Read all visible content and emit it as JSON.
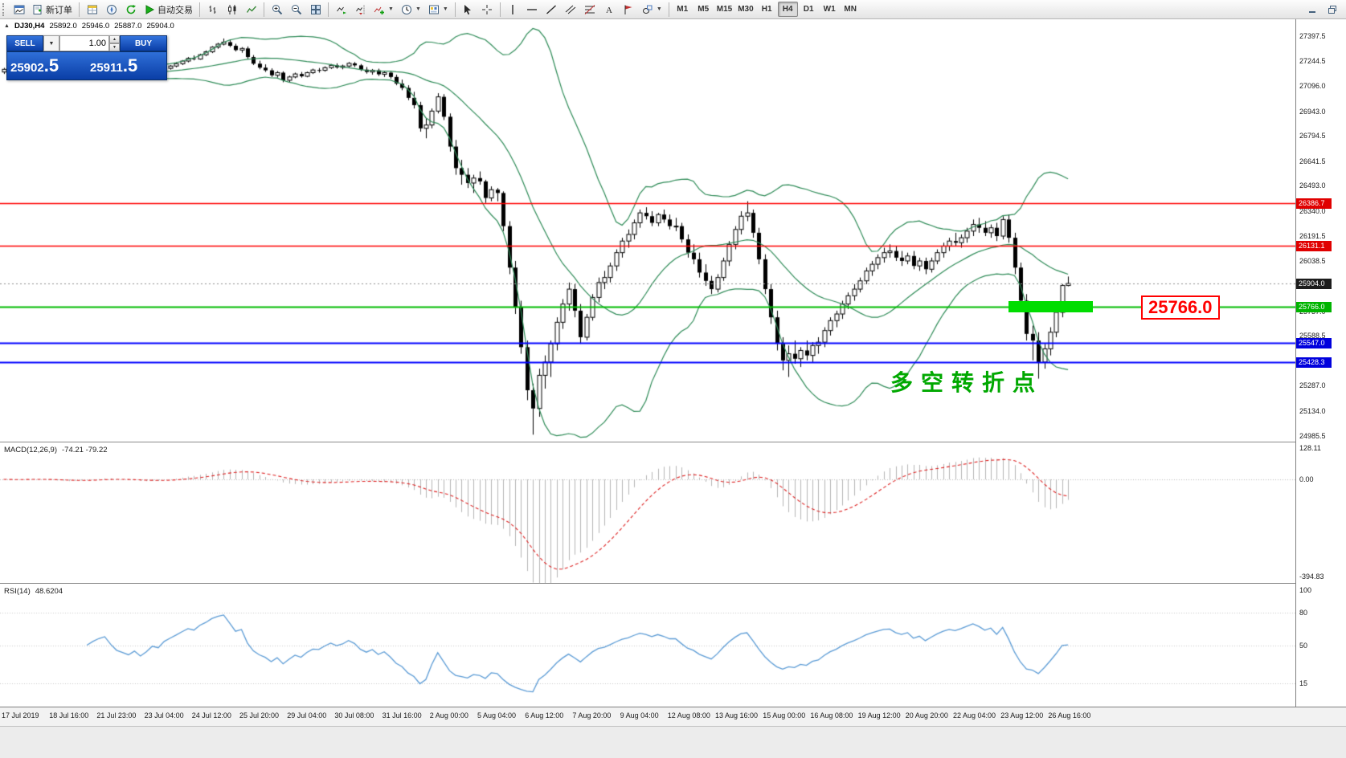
{
  "toolbar": {
    "new_order_label": "新订单",
    "auto_trading_label": "自动交易",
    "timeframes": [
      "M1",
      "M5",
      "M15",
      "M30",
      "H1",
      "H4",
      "D1",
      "W1",
      "MN"
    ],
    "active_timeframe": "H4"
  },
  "chart": {
    "symbol_period": "DJ30,H4",
    "ohlc": {
      "open": "25892.0",
      "high": "25946.0",
      "low": "25887.0",
      "close": "25904.0"
    }
  },
  "trade_panel": {
    "sell_label": "SELL",
    "buy_label": "BUY",
    "volume": "1.00",
    "sell_price_main": "25902",
    "sell_price_frac": ".5",
    "buy_price_main": "25911",
    "buy_price_frac": ".5"
  },
  "price_axis": {
    "labels": [
      "27397.5",
      "27244.5",
      "27096.0",
      "26943.0",
      "26794.5",
      "26641.5",
      "26493.0",
      "26340.0",
      "26191.5",
      "26038.5",
      "25890.0",
      "25737.0",
      "25588.5",
      "25435.5",
      "25287.0",
      "25134.0",
      "24985.5"
    ],
    "badges": [
      {
        "text": "26386.7",
        "bg": "#e00000"
      },
      {
        "text": "26131.1",
        "bg": "#e00000"
      },
      {
        "text": "25904.0",
        "bg": "#1c1c1c"
      },
      {
        "text": "25766.0",
        "bg": "#00b400"
      },
      {
        "text": "25547.0",
        "bg": "#0000dd"
      },
      {
        "text": "25428.3",
        "bg": "#0000dd"
      }
    ]
  },
  "annotations": {
    "price_callout": "25766.0",
    "turning_point": "多空转折点"
  },
  "macd": {
    "label": "MACD(12,26,9)",
    "values": "-74.21 -79.22",
    "axis": [
      "128.11",
      "0.00",
      "-394.83"
    ]
  },
  "rsi": {
    "label": "RSI(14)",
    "value": "48.6204",
    "axis": [
      "100",
      "80",
      "50",
      "15"
    ]
  },
  "time_axis": {
    "labels": [
      "17 Jul 2019",
      "18 Jul 16:00",
      "21 Jul 23:00",
      "23 Jul 04:00",
      "24 Jul 12:00",
      "25 Jul 20:00",
      "29 Jul 04:00",
      "30 Jul 08:00",
      "31 Jul 16:00",
      "2 Aug 00:00",
      "5 Aug 04:00",
      "6 Aug 12:00",
      "7 Aug 20:00",
      "9 Aug 04:00",
      "12 Aug 08:00",
      "13 Aug 16:00",
      "15 Aug 00:00",
      "16 Aug 08:00",
      "19 Aug 12:00",
      "20 Aug 20:00",
      "22 Aug 04:00",
      "23 Aug 12:00",
      "26 Aug 16:00"
    ]
  },
  "chart_data": {
    "type": "candlestick",
    "symbol": "DJ30",
    "timeframe": "H4",
    "y_range": [
      24950,
      27498
    ],
    "current_price": 25904.0,
    "h_lines": [
      {
        "price": 26386.7,
        "color": "#ff0000",
        "width": 1.5
      },
      {
        "price": 26131.1,
        "color": "#ff0000",
        "width": 1.5
      },
      {
        "price": 25766.0,
        "color": "#00bb00",
        "width": 1.8
      },
      {
        "price": 25547.0,
        "color": "#0000ff",
        "width": 1.8
      },
      {
        "price": 25428.3,
        "color": "#0000ff",
        "width": 1.8
      }
    ],
    "overlays": {
      "bollinger": {
        "period": 20,
        "deviation": 2,
        "color": "#2e8b57"
      }
    },
    "indicators": {
      "macd": {
        "fast": 12,
        "slow": 26,
        "signal": 9,
        "value_range": [
          150,
          -420
        ]
      },
      "rsi": {
        "period": 14
      }
    },
    "candles": [
      [
        27180,
        27205,
        27168,
        27196
      ],
      [
        27196,
        27214,
        27185,
        27190
      ],
      [
        27190,
        27198,
        27170,
        27178
      ],
      [
        27178,
        27206,
        27174,
        27200
      ],
      [
        27200,
        27222,
        27192,
        27215
      ],
      [
        27215,
        27226,
        27200,
        27210
      ],
      [
        27210,
        27218,
        27186,
        27194
      ],
      [
        27194,
        27200,
        27162,
        27172
      ],
      [
        27172,
        27190,
        27160,
        27185
      ],
      [
        27185,
        27192,
        27150,
        27158
      ],
      [
        27158,
        27176,
        27148,
        27170
      ],
      [
        27170,
        27178,
        27152,
        27160
      ],
      [
        27160,
        27186,
        27152,
        27180
      ],
      [
        27180,
        27204,
        27172,
        27198
      ],
      [
        27198,
        27210,
        27180,
        27188
      ],
      [
        27188,
        27216,
        27184,
        27210
      ],
      [
        27210,
        27228,
        27200,
        27222
      ],
      [
        27222,
        27238,
        27212,
        27230
      ],
      [
        27230,
        27236,
        27196,
        27204
      ],
      [
        27204,
        27212,
        27170,
        27180
      ],
      [
        27180,
        27196,
        27162,
        27170
      ],
      [
        27170,
        27184,
        27150,
        27160
      ],
      [
        27160,
        27178,
        27148,
        27172
      ],
      [
        27172,
        27180,
        27140,
        27150
      ],
      [
        27150,
        27172,
        27140,
        27164
      ],
      [
        27164,
        27190,
        27158,
        27184
      ],
      [
        27184,
        27196,
        27170,
        27178
      ],
      [
        27178,
        27208,
        27174,
        27202
      ],
      [
        27202,
        27222,
        27194,
        27216
      ],
      [
        27216,
        27238,
        27208,
        27230
      ],
      [
        27230,
        27252,
        27222,
        27246
      ],
      [
        27246,
        27270,
        27238,
        27262
      ],
      [
        27262,
        27280,
        27250,
        27258
      ],
      [
        27258,
        27290,
        27254,
        27284
      ],
      [
        27284,
        27310,
        27276,
        27302
      ],
      [
        27302,
        27336,
        27294,
        27330
      ],
      [
        27330,
        27356,
        27320,
        27348
      ],
      [
        27348,
        27382,
        27340,
        27360
      ],
      [
        27360,
        27374,
        27330,
        27338
      ],
      [
        27338,
        27350,
        27304,
        27312
      ],
      [
        27312,
        27330,
        27296,
        27322
      ],
      [
        27322,
        27334,
        27258,
        27270
      ],
      [
        27270,
        27282,
        27222,
        27230
      ],
      [
        27230,
        27248,
        27196,
        27206
      ],
      [
        27206,
        27226,
        27180,
        27190
      ],
      [
        27190,
        27202,
        27150,
        27160
      ],
      [
        27160,
        27186,
        27146,
        27176
      ],
      [
        27176,
        27184,
        27118,
        27130
      ],
      [
        27130,
        27158,
        27120,
        27150
      ],
      [
        27150,
        27176,
        27142,
        27168
      ],
      [
        27168,
        27180,
        27146,
        27154
      ],
      [
        27154,
        27182,
        27148,
        27176
      ],
      [
        27176,
        27200,
        27168,
        27192
      ],
      [
        27192,
        27204,
        27176,
        27190
      ],
      [
        27190,
        27214,
        27182,
        27206
      ],
      [
        27206,
        27228,
        27198,
        27220
      ],
      [
        27220,
        27232,
        27200,
        27208
      ],
      [
        27208,
        27224,
        27196,
        27216
      ],
      [
        27216,
        27240,
        27208,
        27232
      ],
      [
        27232,
        27240,
        27210,
        27220
      ],
      [
        27220,
        27228,
        27186,
        27194
      ],
      [
        27194,
        27210,
        27170,
        27180
      ],
      [
        27180,
        27198,
        27164,
        27190
      ],
      [
        27190,
        27200,
        27156,
        27166
      ],
      [
        27166,
        27184,
        27150,
        27176
      ],
      [
        27176,
        27182,
        27140,
        27150
      ],
      [
        27150,
        27164,
        27100,
        27110
      ],
      [
        27110,
        27134,
        27070,
        27084
      ],
      [
        27084,
        27100,
        27010,
        27024
      ],
      [
        27024,
        27060,
        26960,
        26980
      ],
      [
        26980,
        27000,
        26820,
        26840
      ],
      [
        26840,
        26900,
        26780,
        26860
      ],
      [
        26860,
        26960,
        26840,
        26944
      ],
      [
        26944,
        27052,
        26930,
        27030
      ],
      [
        27030,
        27046,
        26890,
        26910
      ],
      [
        26910,
        26930,
        26700,
        26730
      ],
      [
        26730,
        26770,
        26560,
        26600
      ],
      [
        26600,
        26650,
        26500,
        26560
      ],
      [
        26560,
        26600,
        26480,
        26510
      ],
      [
        26510,
        26560,
        26450,
        26540
      ],
      [
        26540,
        26580,
        26500,
        26520
      ],
      [
        26520,
        26530,
        26390,
        26420
      ],
      [
        26420,
        26490,
        26400,
        26470
      ],
      [
        26470,
        26480,
        26400,
        26450
      ],
      [
        26450,
        26460,
        26220,
        26250
      ],
      [
        26250,
        26280,
        25960,
        26000
      ],
      [
        26000,
        26040,
        25720,
        25760
      ],
      [
        25760,
        25800,
        25480,
        25520
      ],
      [
        25520,
        25560,
        25200,
        25260
      ],
      [
        25260,
        25300,
        24992,
        25150
      ],
      [
        25150,
        25390,
        25100,
        25350
      ],
      [
        25350,
        25470,
        25270,
        25430
      ],
      [
        25430,
        25560,
        25340,
        25540
      ],
      [
        25540,
        25700,
        25500,
        25670
      ],
      [
        25670,
        25810,
        25630,
        25780
      ],
      [
        25780,
        25910,
        25740,
        25870
      ],
      [
        25870,
        25900,
        25700,
        25740
      ],
      [
        25740,
        25780,
        25540,
        25580
      ],
      [
        25580,
        25720,
        25560,
        25700
      ],
      [
        25700,
        25840,
        25680,
        25820
      ],
      [
        25820,
        25940,
        25790,
        25910
      ],
      [
        25910,
        25980,
        25870,
        25940
      ],
      [
        25940,
        26030,
        25910,
        26010
      ],
      [
        26010,
        26110,
        25980,
        26090
      ],
      [
        26090,
        26180,
        26060,
        26160
      ],
      [
        26160,
        26230,
        26120,
        26200
      ],
      [
        26200,
        26290,
        26170,
        26270
      ],
      [
        26270,
        26350,
        26240,
        26330
      ],
      [
        26330,
        26364,
        26290,
        26310
      ],
      [
        26310,
        26340,
        26250,
        26270
      ],
      [
        26270,
        26330,
        26250,
        26320
      ],
      [
        26320,
        26350,
        26270,
        26290
      ],
      [
        26290,
        26320,
        26230,
        26250
      ],
      [
        26250,
        26300,
        26220,
        26250
      ],
      [
        26250,
        26270,
        26150,
        26170
      ],
      [
        26170,
        26200,
        26060,
        26090
      ],
      [
        26090,
        26140,
        26020,
        26050
      ],
      [
        26050,
        26090,
        25940,
        25970
      ],
      [
        25970,
        26020,
        25890,
        25920
      ],
      [
        25920,
        25950,
        25840,
        25870
      ],
      [
        25870,
        25960,
        25850,
        25940
      ],
      [
        25940,
        26060,
        25920,
        26040
      ],
      [
        26040,
        26160,
        26010,
        26140
      ],
      [
        26140,
        26250,
        26110,
        26230
      ],
      [
        26230,
        26340,
        26200,
        26310
      ],
      [
        26310,
        26400,
        26280,
        26330
      ],
      [
        26330,
        26350,
        26180,
        26210
      ],
      [
        26210,
        26240,
        26020,
        26050
      ],
      [
        26050,
        26080,
        25840,
        25870
      ],
      [
        25870,
        25900,
        25660,
        25700
      ],
      [
        25700,
        25740,
        25500,
        25540
      ],
      [
        25540,
        25580,
        25380,
        25440
      ],
      [
        25440,
        25530,
        25340,
        25480
      ],
      [
        25480,
        25560,
        25420,
        25450
      ],
      [
        25450,
        25520,
        25400,
        25500
      ],
      [
        25500,
        25560,
        25440,
        25470
      ],
      [
        25470,
        25550,
        25430,
        25530
      ],
      [
        25530,
        25580,
        25480,
        25550
      ],
      [
        25550,
        25640,
        25520,
        25620
      ],
      [
        25620,
        25700,
        25590,
        25680
      ],
      [
        25680,
        25740,
        25640,
        25720
      ],
      [
        25720,
        25800,
        25690,
        25780
      ],
      [
        25780,
        25850,
        25750,
        25830
      ],
      [
        25830,
        25900,
        25800,
        25870
      ],
      [
        25870,
        25940,
        25850,
        25920
      ],
      [
        25920,
        26000,
        25900,
        25980
      ],
      [
        25980,
        26040,
        25950,
        26020
      ],
      [
        26020,
        26080,
        25990,
        26060
      ],
      [
        26060,
        26120,
        26030,
        26090
      ],
      [
        26090,
        26140,
        26060,
        26100
      ],
      [
        26100,
        26130,
        26040,
        26060
      ],
      [
        26060,
        26100,
        26010,
        26040
      ],
      [
        26040,
        26090,
        26020,
        26070
      ],
      [
        26070,
        26100,
        25990,
        26010
      ],
      [
        26010,
        26060,
        25980,
        26040
      ],
      [
        26040,
        26060,
        25960,
        25990
      ],
      [
        25990,
        26060,
        25970,
        26040
      ],
      [
        26040,
        26110,
        26020,
        26090
      ],
      [
        26090,
        26150,
        26060,
        26130
      ],
      [
        26130,
        26180,
        26100,
        26160
      ],
      [
        26160,
        26210,
        26130,
        26150
      ],
      [
        26150,
        26200,
        26120,
        26180
      ],
      [
        26180,
        26240,
        26150,
        26220
      ],
      [
        26220,
        26290,
        26190,
        26260
      ],
      [
        26260,
        26300,
        26210,
        26240
      ],
      [
        26240,
        26280,
        26190,
        26210
      ],
      [
        26210,
        26260,
        26180,
        26240
      ],
      [
        26240,
        26270,
        26160,
        26190
      ],
      [
        26190,
        26310,
        26170,
        26290
      ],
      [
        26290,
        26320,
        26150,
        26180
      ],
      [
        26180,
        26210,
        25960,
        26000
      ],
      [
        26000,
        26030,
        25760,
        25800
      ],
      [
        25800,
        25840,
        25560,
        25600
      ],
      [
        25600,
        25650,
        25440,
        25560
      ],
      [
        25560,
        25610,
        25330,
        25430
      ],
      [
        25430,
        25540,
        25390,
        25510
      ],
      [
        25510,
        25640,
        25470,
        25610
      ],
      [
        25610,
        25760,
        25580,
        25730
      ],
      [
        25730,
        25900,
        25700,
        25892
      ],
      [
        25892,
        25946,
        25887,
        25904
      ]
    ]
  }
}
